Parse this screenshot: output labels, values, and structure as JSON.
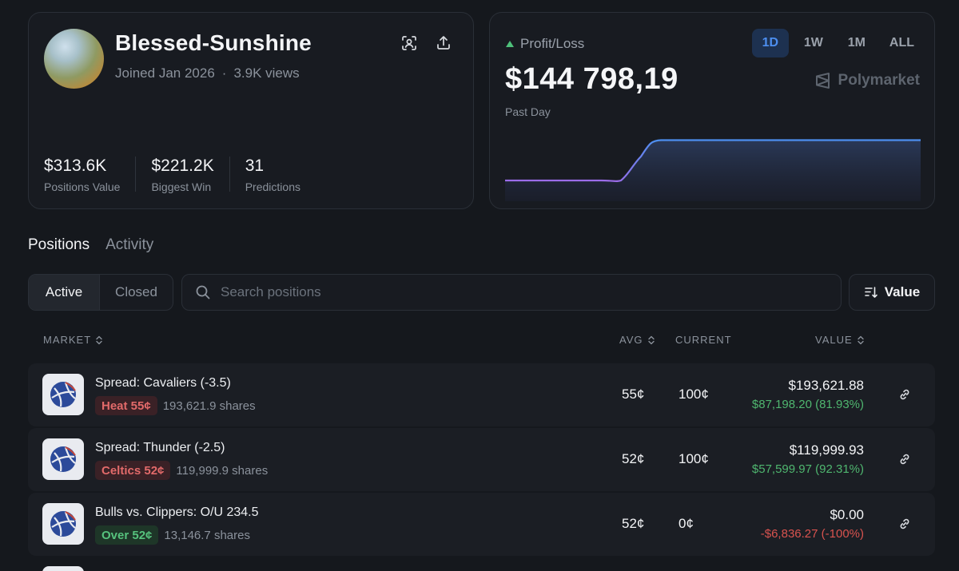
{
  "profile": {
    "username": "Blessed-Sunshine",
    "joined": "Joined Jan 2026",
    "separator": "·",
    "views": "3.9K views",
    "stats": [
      {
        "value": "$313.6K",
        "label": "Positions Value"
      },
      {
        "value": "$221.2K",
        "label": "Biggest Win"
      },
      {
        "value": "31",
        "label": "Predictions"
      }
    ]
  },
  "pnl": {
    "label": "Profit/Loss",
    "value": "$144 798,19",
    "period": "Past Day",
    "brand": "Polymarket",
    "ranges": [
      "1D",
      "1W",
      "1M",
      "ALL"
    ],
    "active_range": "1D",
    "colors": {
      "line_start": "#9b6ce8",
      "line_end": "#4d8ff0",
      "up": "#4ec07a"
    }
  },
  "tabs": {
    "positions": "Positions",
    "activity": "Activity"
  },
  "filter": {
    "active": "Active",
    "closed": "Closed"
  },
  "search": {
    "placeholder": "Search positions"
  },
  "sort": {
    "label": "Value"
  },
  "table": {
    "headers": {
      "market": "MARKET",
      "avg": "AVG",
      "current": "CURRENT",
      "value": "VALUE"
    },
    "rows": [
      {
        "title": "Spread: Cavaliers (-3.5)",
        "pill": "Heat 55¢",
        "pill_color": "red",
        "shares": "193,621.9 shares",
        "avg": "55¢",
        "current": "100¢",
        "value": "$193,621.88",
        "pl": "$87,198.20 (81.93%)",
        "pl_sign": "pos"
      },
      {
        "title": "Spread: Thunder (-2.5)",
        "pill": "Celtics 52¢",
        "pill_color": "red",
        "shares": "119,999.9 shares",
        "avg": "52¢",
        "current": "100¢",
        "value": "$119,999.93",
        "pl": "$57,599.97 (92.31%)",
        "pl_sign": "pos"
      },
      {
        "title": "Bulls vs. Clippers: O/U 234.5",
        "pill": "Over 52¢",
        "pill_color": "green",
        "shares": "13,146.7 shares",
        "avg": "52¢",
        "current": "0¢",
        "value": "$0.00",
        "pl": "-$6,836.27 (-100%)",
        "pl_sign": "neg"
      }
    ]
  },
  "icons": {
    "scan": "scan-user-icon",
    "share": "share-icon",
    "search": "search-icon",
    "sort": "sort-icon",
    "link": "link-icon",
    "market": "basketball-icon",
    "brand": "polymarket-logo-icon"
  }
}
